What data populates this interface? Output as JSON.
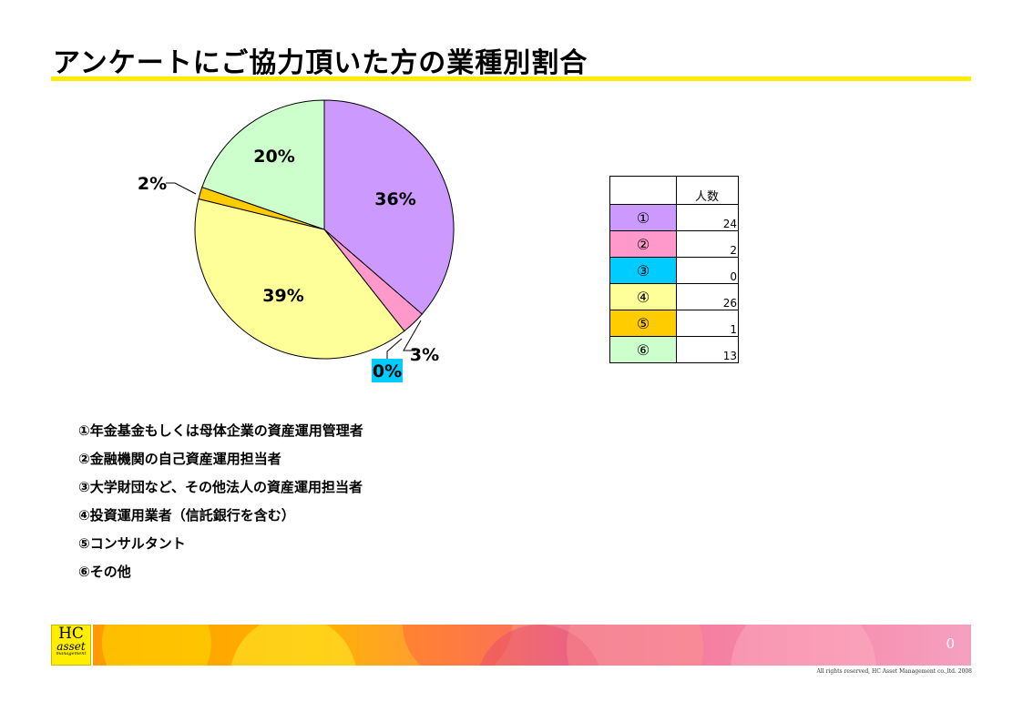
{
  "page": {
    "title": "アンケートにご協力頂いた方の業種別割合",
    "page_number": "0",
    "copyright": "All rights reserved, HC Asset Management co.,ltd. 2008"
  },
  "logo": {
    "line1": "HC",
    "line2": "asset",
    "line3": "management"
  },
  "table": {
    "header_blank": "",
    "header_count": "人数",
    "rows": [
      {
        "marker": "①",
        "count": "24",
        "color": "#cc99ff"
      },
      {
        "marker": "②",
        "count": "2",
        "color": "#ff99cc"
      },
      {
        "marker": "③",
        "count": "0",
        "color": "#00ccff"
      },
      {
        "marker": "④",
        "count": "26",
        "color": "#ffff99"
      },
      {
        "marker": "⑤",
        "count": "1",
        "color": "#ffcc00"
      },
      {
        "marker": "⑥",
        "count": "13",
        "color": "#ccffcc"
      }
    ]
  },
  "legend": [
    "①年金基金もしくは母体企業の資産運用管理者",
    "②金融機関の自己資産運用担当者",
    "③大学財団など、その他法人の資産運用担当者",
    "④投資運用業者（信託銀行を含む）",
    "⑤コンサルタント",
    "⑥その他"
  ],
  "chart_data": {
    "type": "pie",
    "categories": [
      "①",
      "②",
      "③",
      "④",
      "⑤",
      "⑥"
    ],
    "values": [
      24,
      2,
      0,
      26,
      1,
      13
    ],
    "percent_labels": [
      "36%",
      "3%",
      "0%",
      "39%",
      "2%",
      "20%"
    ],
    "colors": [
      "#cc99ff",
      "#ff99cc",
      "#00ccff",
      "#ffff99",
      "#ffcc00",
      "#ccffcc"
    ],
    "start_angle_deg": 0,
    "direction": "clockwise",
    "legend": "table-right"
  }
}
